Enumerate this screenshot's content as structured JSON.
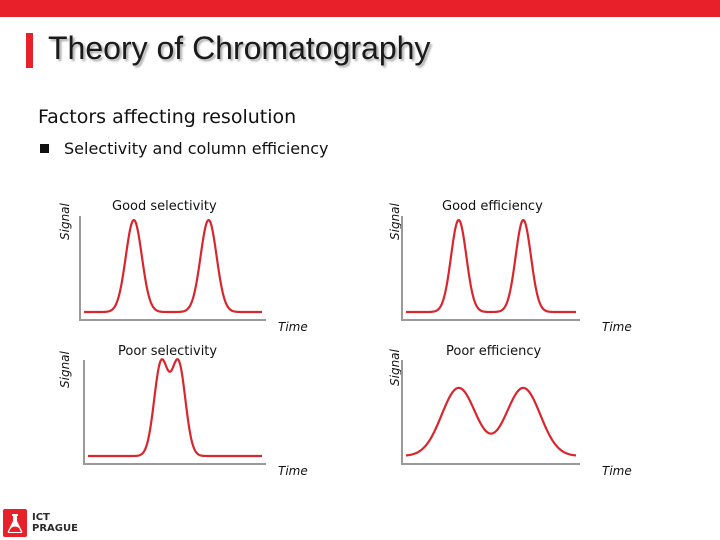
{
  "slide": {
    "title": "Theory of Chromatography",
    "subtitle": "Factors affecting resolution",
    "bullet": "Selectivity and column efficiency",
    "accent_color": "#e8202a",
    "logo": {
      "line1": "ICT",
      "line2": "PRAGUE",
      "icon": "ict-flask-logo-icon"
    }
  },
  "chart_data": [
    {
      "type": "line",
      "title": "Good selectivity",
      "xlabel": "Time",
      "ylabel": "Signal",
      "peaks": [
        {
          "center": 0.28,
          "width": 0.045,
          "height": 1.0
        },
        {
          "center": 0.7,
          "width": 0.045,
          "height": 1.0
        }
      ]
    },
    {
      "type": "line",
      "title": "Good efficiency",
      "xlabel": "Time",
      "ylabel": "Signal",
      "peaks": [
        {
          "center": 0.31,
          "width": 0.045,
          "height": 1.0
        },
        {
          "center": 0.69,
          "width": 0.045,
          "height": 1.0
        }
      ]
    },
    {
      "type": "line",
      "title": "Poor selectivity",
      "xlabel": "Time",
      "ylabel": "Signal",
      "peaks": [
        {
          "center": 0.42,
          "width": 0.04,
          "height": 1.0
        },
        {
          "center": 0.52,
          "width": 0.04,
          "height": 1.0
        }
      ]
    },
    {
      "type": "line",
      "title": "Poor efficiency",
      "xlabel": "Time",
      "ylabel": "Signal",
      "peaks": [
        {
          "center": 0.31,
          "width": 0.1,
          "height": 0.74
        },
        {
          "center": 0.69,
          "width": 0.1,
          "height": 0.74
        }
      ]
    }
  ]
}
